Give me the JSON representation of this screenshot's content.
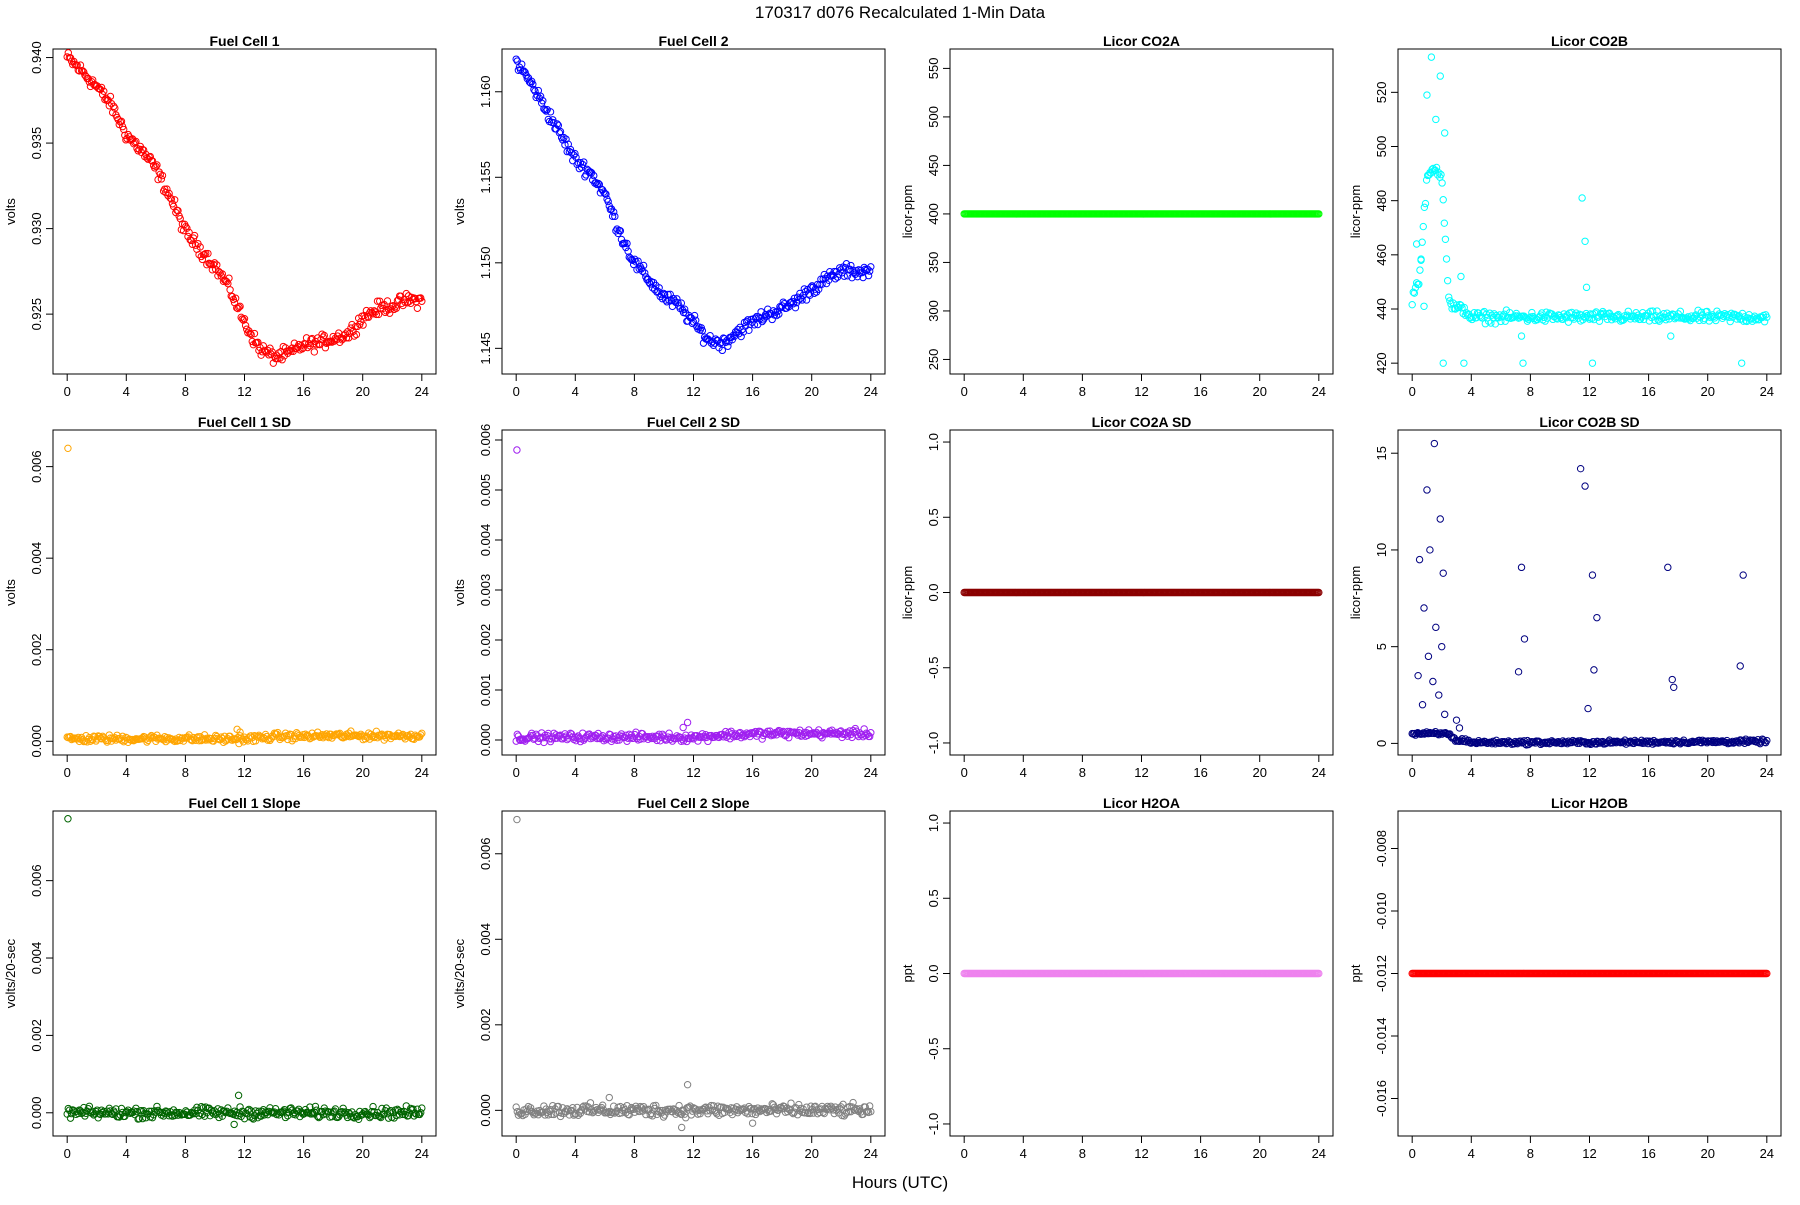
{
  "figure": {
    "title": "170317   d076   Recalculated 1-Min Data",
    "xlabel": "Hours (UTC)"
  },
  "chart_data": [
    {
      "type": "scatter",
      "title": "Fuel Cell 1",
      "ylabel": "volts",
      "color": "#ff0000",
      "xlim": [
        0,
        24
      ],
      "ylim": [
        0.9215,
        0.9405
      ],
      "xticks": [
        "0",
        "4",
        "8",
        "12",
        "16",
        "20",
        "24"
      ],
      "yticks": [
        "0.925",
        "0.930",
        "0.935",
        "0.940"
      ],
      "x": [
        0,
        1,
        2,
        3,
        4,
        5,
        6,
        7,
        8,
        9,
        10,
        11,
        12,
        13,
        14,
        15,
        16,
        17,
        18,
        19,
        20,
        21,
        22,
        23,
        24
      ],
      "y": [
        0.94,
        0.9392,
        0.9383,
        0.9372,
        0.9355,
        0.9346,
        0.9335,
        0.9318,
        0.9298,
        0.9288,
        0.9278,
        0.9265,
        0.9245,
        0.923,
        0.9225,
        0.9227,
        0.9232,
        0.9233,
        0.9236,
        0.9238,
        0.9248,
        0.9253,
        0.9255,
        0.9258,
        0.9258
      ],
      "noise": 0.0002
    },
    {
      "type": "scatter",
      "title": "Fuel Cell 2",
      "ylabel": "volts",
      "color": "#0000ff",
      "xlim": [
        0,
        24
      ],
      "ylim": [
        1.1435,
        1.1625
      ],
      "xticks": [
        "0",
        "4",
        "8",
        "12",
        "16",
        "20",
        "24"
      ],
      "yticks": [
        "1.145",
        "1.150",
        "1.155",
        "1.160"
      ],
      "x": [
        0,
        1,
        2,
        3,
        4,
        5,
        6,
        7,
        8,
        9,
        10,
        11,
        12,
        13,
        14,
        15,
        16,
        17,
        18,
        19,
        20,
        21,
        22,
        23,
        24
      ],
      "y": [
        1.1618,
        1.1605,
        1.159,
        1.1575,
        1.156,
        1.1553,
        1.154,
        1.1518,
        1.15,
        1.149,
        1.148,
        1.1475,
        1.1465,
        1.1455,
        1.1453,
        1.146,
        1.1465,
        1.147,
        1.1473,
        1.1478,
        1.1485,
        1.149,
        1.1495,
        1.1495,
        1.1495
      ],
      "noise": 0.0002
    },
    {
      "type": "scatter",
      "title": "Licor CO2A",
      "ylabel": "licor-ppm",
      "color": "#00ff00",
      "xlim": [
        0,
        24
      ],
      "ylim": [
        235,
        570
      ],
      "xticks": [
        "0",
        "4",
        "8",
        "12",
        "16",
        "20",
        "24"
      ],
      "yticks": [
        "250",
        "300",
        "350",
        "400",
        "450",
        "500",
        "550"
      ],
      "x": [
        0,
        24
      ],
      "y": [
        400,
        400
      ],
      "noise": 0
    },
    {
      "type": "scatter",
      "title": "Licor CO2B",
      "ylabel": "licor-ppm",
      "color": "#00ffff",
      "xlim": [
        0,
        24
      ],
      "ylim": [
        416,
        536
      ],
      "xticks": [
        "0",
        "4",
        "8",
        "12",
        "16",
        "20",
        "24"
      ],
      "yticks": [
        "420",
        "440",
        "460",
        "480",
        "500",
        "520"
      ],
      "x": [
        0,
        0.5,
        1,
        1.5,
        2,
        2.5,
        3,
        3.5,
        4,
        12,
        24
      ],
      "y": [
        444,
        452,
        488,
        492,
        490,
        442,
        440,
        440,
        437,
        437,
        437
      ],
      "noise": 1,
      "scatter_extra": {
        "x": [
          1.0,
          1.3,
          1.6,
          1.9,
          2.2,
          0.3,
          0.6,
          0.8,
          3.3,
          3.5,
          11.5,
          11.7,
          11.8,
          7.5,
          7.4,
          17.5,
          22.3,
          2.1,
          12.2
        ],
        "y": [
          519,
          533,
          510,
          526,
          505,
          464,
          458,
          441,
          452,
          420,
          481,
          465,
          448,
          420,
          430,
          430,
          420,
          420,
          420
        ]
      }
    },
    {
      "type": "scatter",
      "title": "Fuel Cell 1 SD",
      "ylabel": "volts",
      "color": "#ffa500",
      "xlim": [
        0,
        24
      ],
      "ylim": [
        -0.0003,
        0.0068
      ],
      "xticks": [
        "0",
        "4",
        "8",
        "12",
        "16",
        "20",
        "24"
      ],
      "yticks": [
        "0.000",
        "0.002",
        "0.004",
        "0.006"
      ],
      "x": [
        0,
        6,
        12,
        14,
        18,
        24
      ],
      "y": [
        5e-05,
        6e-05,
        5e-05,
        0.0001,
        0.00012,
        0.00012
      ],
      "noise": 4e-05,
      "scatter_extra": {
        "x": [
          0.05,
          11.5,
          11.7
        ],
        "y": [
          0.0064,
          0.00026,
          0.0002
        ]
      }
    },
    {
      "type": "scatter",
      "title": "Fuel Cell 2 SD",
      "ylabel": "volts",
      "color": "#a020f0",
      "xlim": [
        0,
        24
      ],
      "ylim": [
        -0.0003,
        0.0062
      ],
      "xticks": [
        "0",
        "4",
        "8",
        "12",
        "16",
        "20",
        "24"
      ],
      "yticks": [
        "0.000",
        "0.001",
        "0.002",
        "0.003",
        "0.004",
        "0.005",
        "0.006"
      ],
      "x": [
        0,
        6,
        12,
        14,
        18,
        24
      ],
      "y": [
        5e-05,
        6e-05,
        5e-05,
        0.0001,
        0.00013,
        0.00013
      ],
      "noise": 4e-05,
      "scatter_extra": {
        "x": [
          0.05,
          11.6,
          11.3
        ],
        "y": [
          0.0058,
          0.00035,
          0.00025
        ]
      }
    },
    {
      "type": "scatter",
      "title": "Licor CO2A SD",
      "ylabel": "licor-ppm",
      "color": "#8b0000",
      "xlim": [
        0,
        24
      ],
      "ylim": [
        -1.08,
        1.08
      ],
      "xticks": [
        "0",
        "4",
        "8",
        "12",
        "16",
        "20",
        "24"
      ],
      "yticks": [
        "-1.0",
        "-0.5",
        "0.0",
        "0.5",
        "1.0"
      ],
      "x": [
        0,
        24
      ],
      "y": [
        0,
        0
      ],
      "noise": 0
    },
    {
      "type": "scatter",
      "title": "Licor CO2B SD",
      "ylabel": "licor-ppm",
      "color": "#000080",
      "xlim": [
        0,
        24
      ],
      "ylim": [
        -0.6,
        16.2
      ],
      "xticks": [
        "0",
        "4",
        "8",
        "12",
        "16",
        "20",
        "24"
      ],
      "yticks": [
        "0",
        "5",
        "10",
        "15"
      ],
      "x": [
        0,
        2.5,
        3,
        3.5,
        4,
        12,
        24
      ],
      "y": [
        0.5,
        0.5,
        0.1,
        0.2,
        0.05,
        0.05,
        0.1
      ],
      "noise": 0.05,
      "scatter_extra": {
        "x": [
          1.5,
          11.4,
          11.7,
          1.0,
          1.9,
          0.5,
          2.1,
          7.4,
          12.2,
          17.3,
          22.4,
          22.2,
          12.5,
          7.6,
          17.7,
          1.2,
          0.8,
          1.6,
          2.0,
          0.4,
          1.1,
          1.4,
          1.8,
          0.7,
          2.2,
          12.3,
          11.9,
          7.2,
          17.6,
          3.0,
          3.2
        ],
        "y": [
          15.5,
          14.2,
          13.3,
          13.1,
          11.6,
          9.5,
          8.8,
          9.1,
          8.7,
          9.1,
          8.7,
          4.0,
          6.5,
          5.4,
          2.9,
          10.0,
          7.0,
          6.0,
          5.0,
          3.5,
          4.5,
          3.2,
          2.5,
          2.0,
          1.5,
          3.8,
          1.8,
          3.7,
          3.3,
          1.2,
          0.8
        ]
      }
    },
    {
      "type": "scatter",
      "title": "Fuel Cell 1 Slope",
      "ylabel": "volts/20-sec",
      "color": "#006400",
      "xlim": [
        0,
        24
      ],
      "ylim": [
        -0.0006,
        0.0078
      ],
      "xticks": [
        "0",
        "4",
        "8",
        "12",
        "16",
        "20",
        "24"
      ],
      "yticks": [
        "0.000",
        "0.002",
        "0.004",
        "0.006"
      ],
      "x": [
        0,
        24
      ],
      "y": [
        0,
        0
      ],
      "noise": 7e-05,
      "scatter_extra": {
        "x": [
          0.05,
          11.6,
          11.3
        ],
        "y": [
          0.0076,
          0.00045,
          -0.0003
        ]
      }
    },
    {
      "type": "scatter",
      "title": "Fuel Cell 2 Slope",
      "ylabel": "volts/20-sec",
      "color": "#808080",
      "xlim": [
        0,
        24
      ],
      "ylim": [
        -0.0006,
        0.007
      ],
      "xticks": [
        "0",
        "4",
        "8",
        "12",
        "16",
        "20",
        "24"
      ],
      "yticks": [
        "0.000",
        "0.002",
        "0.004",
        "0.006"
      ],
      "x": [
        0,
        24
      ],
      "y": [
        0,
        0
      ],
      "noise": 7e-05,
      "scatter_extra": {
        "x": [
          0.05,
          11.6,
          11.2,
          16.0,
          6.3
        ],
        "y": [
          0.0068,
          0.0006,
          -0.0004,
          -0.0003,
          0.0003
        ]
      }
    },
    {
      "type": "scatter",
      "title": "Licor H2OA",
      "ylabel": "ppt",
      "color": "#ee82ee",
      "xlim": [
        0,
        24
      ],
      "ylim": [
        -1.08,
        1.08
      ],
      "xticks": [
        "0",
        "4",
        "8",
        "12",
        "16",
        "20",
        "24"
      ],
      "yticks": [
        "-1.0",
        "-0.5",
        "0.0",
        "0.5",
        "1.0"
      ],
      "x": [
        0,
        24
      ],
      "y": [
        0,
        0
      ],
      "noise": 0
    },
    {
      "type": "scatter",
      "title": "Licor H2OB",
      "ylabel": "ppt",
      "color": "#ff0000",
      "xlim": [
        0,
        24
      ],
      "ylim": [
        -0.0172,
        -0.0068
      ],
      "xticks": [
        "0",
        "4",
        "8",
        "12",
        "16",
        "20",
        "24"
      ],
      "yticks": [
        "-0.016",
        "-0.014",
        "-0.012",
        "-0.010",
        "-0.008"
      ],
      "x": [
        0,
        24
      ],
      "y": [
        -0.012,
        -0.012
      ],
      "noise": 0
    }
  ]
}
